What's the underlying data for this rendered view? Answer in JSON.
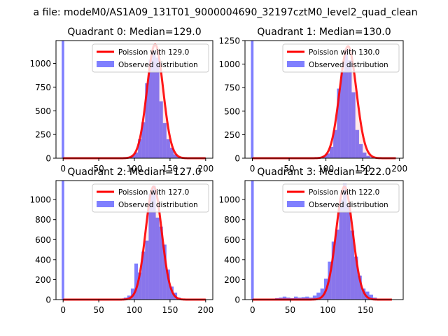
{
  "suptitle": "a file: modeM0/AS1A09_131T01_9000004690_32197cztM0_level2_quad_clean",
  "legend": {
    "fit_prefix": "Poission with ",
    "observed": "Observed distribution"
  },
  "colors": {
    "fit": "#ff0000",
    "hist": "#0000ff",
    "axis": "#000000",
    "bg": "#ffffff"
  },
  "chart_data": [
    {
      "type": "bar",
      "title": "Quadrant 0: Median=129.0",
      "median": 129.0,
      "legend_fit": "Poission with 129.0",
      "legend_placement": "top-right",
      "xlim": [
        -10,
        210
      ],
      "ylim": [
        0,
        1240
      ],
      "xticks": [
        0,
        50,
        100,
        150,
        200
      ],
      "yticks": [
        0,
        250,
        500,
        750,
        1000
      ],
      "xtick_labels": [
        "0",
        "50",
        "100",
        "150",
        "200"
      ],
      "ytick_labels": [
        "0",
        "250",
        "500",
        "750",
        "1000"
      ],
      "bin_width": 5,
      "zero_spike": 1240,
      "hist_x": [
        80,
        85,
        90,
        95,
        100,
        105,
        110,
        115,
        120,
        125,
        130,
        135,
        140,
        145,
        150,
        155,
        160,
        165
      ],
      "hist_y": [
        5,
        10,
        15,
        30,
        60,
        200,
        380,
        790,
        1040,
        1130,
        1060,
        600,
        370,
        200,
        110,
        40,
        15,
        5
      ],
      "fit_peak": 1200,
      "fit_sigma": 11.36,
      "fit_xmax": 200
    },
    {
      "type": "bar",
      "title": "Quadrant 1: Median=130.0",
      "median": 130.0,
      "legend_fit": "Poission with 130.0",
      "legend_placement": "top-right",
      "xlim": [
        -10,
        205
      ],
      "ylim": [
        0,
        1250
      ],
      "xticks": [
        0,
        50,
        100,
        150,
        200
      ],
      "yticks": [
        0,
        250,
        500,
        750,
        1000,
        1250
      ],
      "xtick_labels": [
        "0",
        "50",
        "100",
        "150",
        "200"
      ],
      "ytick_labels": [
        "0",
        "250",
        "500",
        "750",
        "1000",
        "1250"
      ],
      "bin_width": 5,
      "zero_spike": 1250,
      "hist_x": [
        80,
        85,
        90,
        95,
        100,
        105,
        110,
        115,
        120,
        125,
        130,
        135,
        140,
        145,
        150,
        155,
        160,
        165
      ],
      "hist_y": [
        5,
        10,
        15,
        25,
        50,
        120,
        300,
        740,
        930,
        1160,
        1040,
        700,
        300,
        150,
        60,
        25,
        10,
        5
      ],
      "fit_peak": 1190,
      "fit_sigma": 11.4,
      "fit_xmax": 195
    },
    {
      "type": "bar",
      "title": "Quadrant 2: Median=127.0",
      "median": 127.0,
      "legend_fit": "Poission with 127.0",
      "legend_placement": "top-right",
      "xlim": [
        -10,
        210
      ],
      "ylim": [
        0,
        1190
      ],
      "xticks": [
        0,
        50,
        100,
        150,
        200
      ],
      "yticks": [
        0,
        200,
        400,
        600,
        800,
        1000
      ],
      "xtick_labels": [
        "0",
        "50",
        "100",
        "150",
        "200"
      ],
      "ytick_labels": [
        "0",
        "200",
        "400",
        "600",
        "800",
        "1000"
      ],
      "bin_width": 5,
      "zero_spike": 1190,
      "hist_x": [
        75,
        80,
        85,
        90,
        95,
        100,
        105,
        110,
        115,
        120,
        125,
        130,
        135,
        140,
        145,
        150,
        155,
        160,
        165
      ],
      "hist_y": [
        5,
        10,
        20,
        40,
        110,
        360,
        270,
        480,
        590,
        1060,
        1140,
        820,
        730,
        550,
        300,
        130,
        70,
        20,
        5
      ],
      "fit_peak": 1130,
      "fit_sigma": 11.3,
      "fit_xmax": 200
    },
    {
      "type": "bar",
      "title": "Quadrant 3: Median=122.0",
      "median": 122.0,
      "legend_fit": "Poission with 122.0",
      "legend_placement": "top-right",
      "xlim": [
        -10,
        200
      ],
      "ylim": [
        0,
        1190
      ],
      "xticks": [
        0,
        50,
        100,
        150
      ],
      "yticks": [
        0,
        200,
        400,
        600,
        800,
        1000
      ],
      "xtick_labels": [
        "0",
        "50",
        "100",
        "150"
      ],
      "ytick_labels": [
        "0",
        "200",
        "400",
        "600",
        "800",
        "1000"
      ],
      "bin_width": 5,
      "zero_spike": 1190,
      "hist_x": [
        20,
        25,
        30,
        35,
        40,
        45,
        50,
        55,
        60,
        65,
        70,
        75,
        80,
        85,
        90,
        95,
        100,
        105,
        110,
        115,
        120,
        125,
        130,
        135,
        140,
        145,
        150,
        155,
        160,
        165
      ],
      "hist_y": [
        5,
        10,
        15,
        20,
        30,
        20,
        15,
        30,
        20,
        25,
        30,
        20,
        40,
        70,
        110,
        210,
        380,
        580,
        700,
        1000,
        1160,
        960,
        690,
        430,
        240,
        110,
        80,
        50,
        20,
        5
      ],
      "fit_peak": 1130,
      "fit_sigma": 11.0,
      "fit_xmax": 185
    }
  ]
}
